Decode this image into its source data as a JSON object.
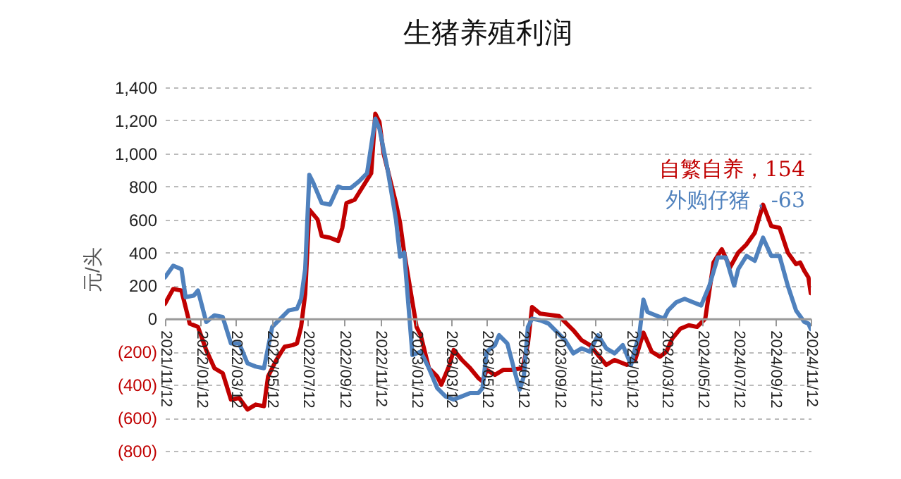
{
  "chart_data": {
    "type": "line",
    "title": "生猪养殖利润",
    "ylabel": "元/头",
    "xlim": [
      "2021-11-12",
      "2024-11-12"
    ],
    "xticks": [
      {
        "value": "2021-11-12",
        "label": "2021/11/12"
      },
      {
        "value": "2022-01-12",
        "label": "2022/01/12"
      },
      {
        "value": "2022-03-12",
        "label": "2022/03/12"
      },
      {
        "value": "2022-05-12",
        "label": "2022/05/12"
      },
      {
        "value": "2022-07-12",
        "label": "2022/07/12"
      },
      {
        "value": "2022-09-12",
        "label": "2022/09/12"
      },
      {
        "value": "2022-11-12",
        "label": "2022/11/12"
      },
      {
        "value": "2023-01-12",
        "label": "2023/01/12"
      },
      {
        "value": "2023-03-12",
        "label": "2023/03/12"
      },
      {
        "value": "2023-05-12",
        "label": "2023/05/12"
      },
      {
        "value": "2023-07-12",
        "label": "2023/07/12"
      },
      {
        "value": "2023-09-12",
        "label": "2023/09/12"
      },
      {
        "value": "2023-11-12",
        "label": "2023/11/12"
      },
      {
        "value": "2024-01-12",
        "label": "2024/01/12"
      },
      {
        "value": "2024-03-12",
        "label": "2024/03/12"
      },
      {
        "value": "2024-05-12",
        "label": "2024/05/12"
      },
      {
        "value": "2024-07-12",
        "label": "2024/07/12"
      },
      {
        "value": "2024-09-12",
        "label": "2024/09/12"
      },
      {
        "value": "2024-11-12",
        "label": "2024/11/12"
      }
    ],
    "ylim": [
      -800,
      1400
    ],
    "yticks": [
      {
        "value": -800,
        "label": "(800)"
      },
      {
        "value": -600,
        "label": "(600)"
      },
      {
        "value": -400,
        "label": "(400)"
      },
      {
        "value": -200,
        "label": "(200)"
      },
      0,
      200,
      400,
      600,
      800,
      {
        "value": 1000,
        "label": "1,000"
      },
      {
        "value": 1200,
        "label": "1,200"
      },
      {
        "value": 1400,
        "label": "1,400"
      }
    ],
    "grid": "y",
    "series": [
      {
        "name": "自繁自养，154",
        "color": "#c00000",
        "x": [
          "2021-11-12",
          "2021-11-26",
          "2021-12-10",
          "2021-12-24",
          "2022-01-07",
          "2022-01-21",
          "2022-02-04",
          "2022-02-18",
          "2022-03-04",
          "2022-03-18",
          "2022-04-01",
          "2022-04-15",
          "2022-04-29",
          "2022-05-06",
          "2022-05-20",
          "2022-06-03",
          "2022-06-17",
          "2022-06-24",
          "2022-07-01",
          "2022-07-08",
          "2022-07-15",
          "2022-07-29",
          "2022-08-05",
          "2022-08-19",
          "2022-09-02",
          "2022-09-09",
          "2022-09-16",
          "2022-09-30",
          "2022-10-14",
          "2022-10-28",
          "2022-11-04",
          "2022-11-11",
          "2022-11-18",
          "2022-11-25",
          "2022-12-09",
          "2022-12-16",
          "2022-12-23",
          "2023-01-06",
          "2023-01-13",
          "2023-01-20",
          "2023-02-03",
          "2023-02-17",
          "2023-02-24",
          "2023-03-10",
          "2023-03-17",
          "2023-03-31",
          "2023-04-14",
          "2023-04-28",
          "2023-05-05",
          "2023-05-12",
          "2023-05-26",
          "2023-06-09",
          "2023-06-23",
          "2023-07-12",
          "2023-07-21",
          "2023-07-28",
          "2023-08-11",
          "2023-09-12",
          "2023-10-06",
          "2023-10-20",
          "2023-11-03",
          "2023-11-17",
          "2023-12-01",
          "2023-12-15",
          "2024-01-05",
          "2024-01-19",
          "2024-02-02",
          "2024-02-16",
          "2024-03-01",
          "2024-03-12",
          "2024-03-22",
          "2024-04-05",
          "2024-04-19",
          "2024-05-03",
          "2024-05-17",
          "2024-05-31",
          "2024-06-14",
          "2024-06-28",
          "2024-07-12",
          "2024-07-26",
          "2024-08-09",
          "2024-08-23",
          "2024-09-06",
          "2024-09-20",
          "2024-10-04",
          "2024-10-18",
          "2024-10-25",
          "2024-11-01",
          "2024-11-08",
          "2024-11-12"
        ],
        "values": [
          90,
          180,
          170,
          -30,
          -50,
          -190,
          -300,
          -330,
          -490,
          -480,
          -550,
          -520,
          -530,
          -350,
          -250,
          -170,
          -160,
          -150,
          -50,
          150,
          660,
          600,
          500,
          490,
          470,
          550,
          700,
          720,
          800,
          880,
          1240,
          1190,
          1000,
          900,
          700,
          580,
          400,
          100,
          -50,
          -100,
          -300,
          -350,
          -400,
          -280,
          -190,
          -250,
          -300,
          -360,
          -380,
          -310,
          -340,
          -310,
          -310,
          -300,
          -150,
          70,
          30,
          15,
          -70,
          -130,
          -160,
          -220,
          -280,
          -250,
          -280,
          -250,
          -85,
          -200,
          -230,
          -200,
          -120,
          -60,
          -40,
          -50,
          0,
          340,
          420,
          310,
          400,
          450,
          520,
          690,
          560,
          550,
          400,
          330,
          340,
          290,
          250,
          154
        ]
      },
      {
        "name": "外购仔猪，-63",
        "color": "#4f81bd",
        "x": [
          "2021-11-12",
          "2021-11-26",
          "2021-12-10",
          "2021-12-17",
          "2021-12-31",
          "2022-01-07",
          "2022-01-21",
          "2022-02-04",
          "2022-02-18",
          "2022-03-04",
          "2022-03-18",
          "2022-04-01",
          "2022-04-15",
          "2022-04-29",
          "2022-05-13",
          "2022-05-27",
          "2022-06-10",
          "2022-06-24",
          "2022-07-01",
          "2022-07-08",
          "2022-07-15",
          "2022-07-22",
          "2022-08-05",
          "2022-08-19",
          "2022-09-02",
          "2022-09-09",
          "2022-09-23",
          "2022-10-07",
          "2022-10-21",
          "2022-11-04",
          "2022-11-11",
          "2022-11-25",
          "2022-12-09",
          "2022-12-16",
          "2022-12-23",
          "2023-01-06",
          "2023-01-20",
          "2023-02-03",
          "2023-02-17",
          "2023-03-03",
          "2023-03-17",
          "2023-03-31",
          "2023-04-14",
          "2023-04-28",
          "2023-05-05",
          "2023-05-12",
          "2023-05-26",
          "2023-06-02",
          "2023-06-16",
          "2023-06-30",
          "2023-07-07",
          "2023-07-14",
          "2023-07-21",
          "2023-07-28",
          "2023-08-11",
          "2023-08-25",
          "2023-09-08",
          "2023-09-22",
          "2023-10-06",
          "2023-10-20",
          "2023-11-03",
          "2023-11-17",
          "2023-12-01",
          "2023-12-15",
          "2023-12-29",
          "2024-01-12",
          "2024-01-19",
          "2024-01-26",
          "2024-02-02",
          "2024-02-09",
          "2024-02-23",
          "2024-03-08",
          "2024-03-15",
          "2024-03-29",
          "2024-04-12",
          "2024-04-26",
          "2024-05-10",
          "2024-05-24",
          "2024-06-07",
          "2024-06-21",
          "2024-07-05",
          "2024-07-12",
          "2024-07-26",
          "2024-08-09",
          "2024-08-23",
          "2024-09-06",
          "2024-09-20",
          "2024-10-04",
          "2024-10-18",
          "2024-11-01",
          "2024-11-08",
          "2024-11-12"
        ],
        "values": [
          250,
          320,
          300,
          130,
          140,
          170,
          -20,
          20,
          10,
          -150,
          -150,
          -270,
          -290,
          -300,
          -50,
          0,
          50,
          60,
          120,
          300,
          870,
          820,
          700,
          690,
          800,
          790,
          790,
          830,
          880,
          1210,
          1150,
          900,
          600,
          375,
          400,
          -220,
          -200,
          -300,
          -420,
          -470,
          -490,
          -470,
          -450,
          -450,
          -420,
          -200,
          -160,
          -100,
          -150,
          -340,
          -430,
          -350,
          -50,
          0,
          -10,
          -30,
          -80,
          -130,
          -210,
          -180,
          -200,
          -100,
          -180,
          -210,
          -160,
          -280,
          -180,
          -100,
          115,
          40,
          20,
          0,
          50,
          100,
          120,
          100,
          80,
          200,
          370,
          370,
          200,
          300,
          380,
          350,
          490,
          380,
          380,
          200,
          50,
          -20,
          -30,
          -63
        ]
      }
    ]
  }
}
